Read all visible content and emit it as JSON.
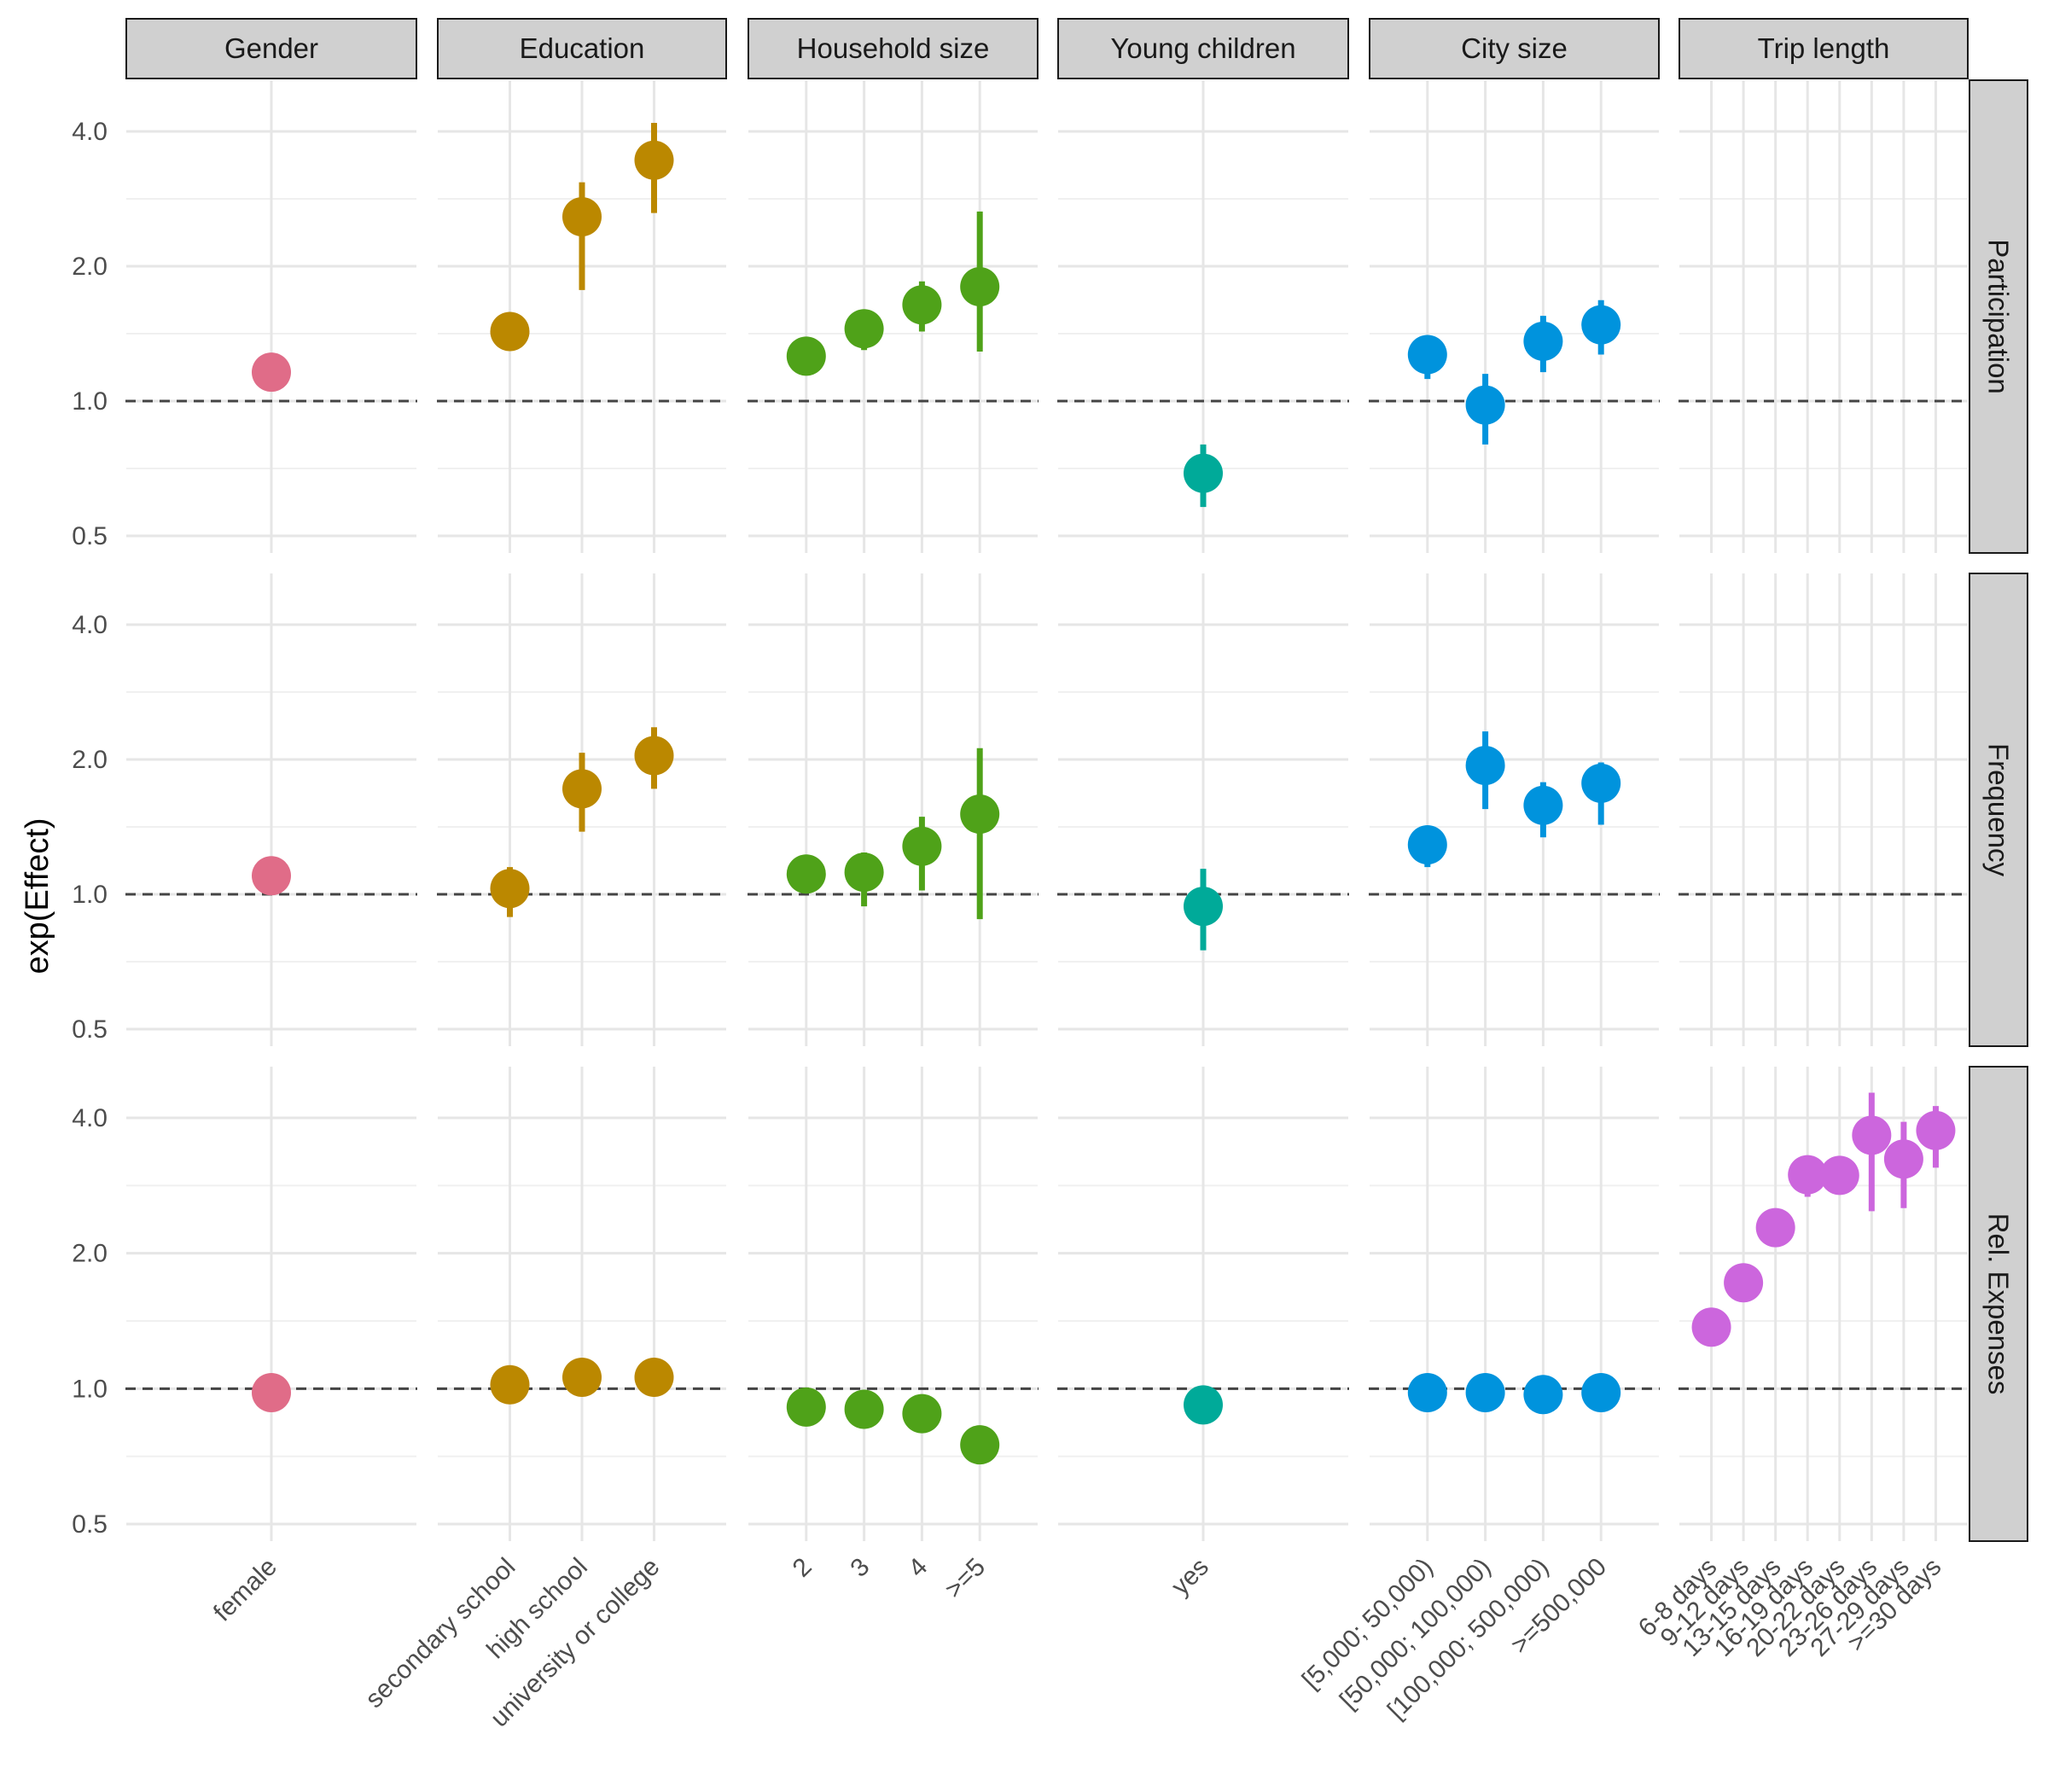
{
  "chart_data": {
    "type": "scatter",
    "ylabel": "exp(Effect)",
    "y_scale": "log2",
    "ylim": [
      0.5,
      4.0
    ],
    "yticks": [
      "0.5",
      "1.0",
      "2.0",
      "4.0"
    ],
    "reference_line": 1.0,
    "grid": true,
    "rows": [
      "Participation",
      "Frequency",
      "Rel. Expenses"
    ],
    "columns": [
      {
        "name": "Gender",
        "color": "#e06c88",
        "categories": [
          "female"
        ],
        "values": {
          "Participation": [
            [
              1.16,
              1.12,
              1.2
            ]
          ],
          "Frequency": [
            [
              1.1,
              1.06,
              1.14
            ]
          ],
          "Rel. Expenses": [
            [
              0.98,
              0.95,
              1.01
            ]
          ]
        }
      },
      {
        "name": "Education",
        "color": "#bb8800",
        "categories": [
          "secondary school",
          "high school",
          "university or college"
        ],
        "values": {
          "Participation": [
            [
              1.43,
              1.32,
              1.52
            ],
            [
              2.58,
              1.77,
              3.08
            ],
            [
              3.45,
              2.63,
              4.18
            ]
          ],
          "Frequency": [
            [
              1.03,
              0.89,
              1.15
            ],
            [
              1.72,
              1.38,
              2.07
            ],
            [
              2.04,
              1.72,
              2.36
            ]
          ],
          "Rel. Expenses": [
            [
              1.02,
              1.0,
              1.04
            ],
            [
              1.06,
              1.03,
              1.09
            ],
            [
              1.06,
              1.03,
              1.09
            ]
          ]
        }
      },
      {
        "name": "Household size",
        "color": "#4fa219",
        "categories": [
          "2",
          "3",
          "4",
          ">=5"
        ],
        "values": {
          "Participation": [
            [
              1.26,
              1.16,
              1.35
            ],
            [
              1.45,
              1.3,
              1.6
            ],
            [
              1.64,
              1.43,
              1.85
            ],
            [
              1.8,
              1.29,
              2.65
            ]
          ],
          "Frequency": [
            [
              1.11,
              1.01,
              1.2
            ],
            [
              1.12,
              0.94,
              1.24
            ],
            [
              1.28,
              1.02,
              1.49
            ],
            [
              1.51,
              0.88,
              2.12
            ]
          ],
          "Rel. Expenses": [
            [
              0.91,
              0.88,
              0.94
            ],
            [
              0.9,
              0.87,
              0.93
            ],
            [
              0.88,
              0.85,
              0.91
            ],
            [
              0.75,
              0.68,
              0.8
            ]
          ]
        }
      },
      {
        "name": "Young children",
        "color": "#00aa99",
        "categories": [
          "yes"
        ],
        "values": {
          "Participation": [
            [
              0.69,
              0.58,
              0.8
            ]
          ],
          "Frequency": [
            [
              0.94,
              0.75,
              1.14
            ]
          ],
          "Rel. Expenses": [
            [
              0.92,
              0.89,
              0.95
            ]
          ]
        }
      },
      {
        "name": "City size",
        "color": "#0093dd",
        "categories": [
          "[5,000; 50,000)",
          "[50,000; 100,000)",
          "[100,000; 500,000)",
          ">=500,000"
        ],
        "values": {
          "Participation": [
            [
              1.27,
              1.12,
              1.35
            ],
            [
              0.98,
              0.8,
              1.15
            ],
            [
              1.36,
              1.16,
              1.55
            ],
            [
              1.48,
              1.27,
              1.68
            ]
          ],
          "Frequency": [
            [
              1.29,
              1.15,
              1.42
            ],
            [
              1.94,
              1.55,
              2.31
            ],
            [
              1.58,
              1.34,
              1.78
            ],
            [
              1.77,
              1.43,
              1.97
            ]
          ],
          "Rel. Expenses": [
            [
              0.98,
              0.95,
              1.01
            ],
            [
              0.98,
              0.95,
              1.01
            ],
            [
              0.97,
              0.94,
              1.0
            ],
            [
              0.98,
              0.95,
              1.01
            ]
          ]
        }
      },
      {
        "name": "Trip length",
        "color": "#cc66dd",
        "categories": [
          "6-8 days",
          "9-12 days",
          "13-15 days",
          "16-19 days",
          "20-22 days",
          "23-26 days",
          "27-29 days",
          ">=30 days"
        ],
        "values": {
          "Participation": [],
          "Frequency": [],
          "Rel. Expenses": [
            [
              1.37,
              1.3,
              1.45
            ],
            [
              1.72,
              1.61,
              1.84
            ],
            [
              2.28,
              2.14,
              2.42
            ],
            [
              2.99,
              2.67,
              3.23
            ],
            [
              2.98,
              2.76,
              3.19
            ],
            [
              3.66,
              2.48,
              4.55
            ],
            [
              3.24,
              2.52,
              3.92
            ],
            [
              3.75,
              3.1,
              4.25
            ]
          ]
        }
      }
    ]
  }
}
